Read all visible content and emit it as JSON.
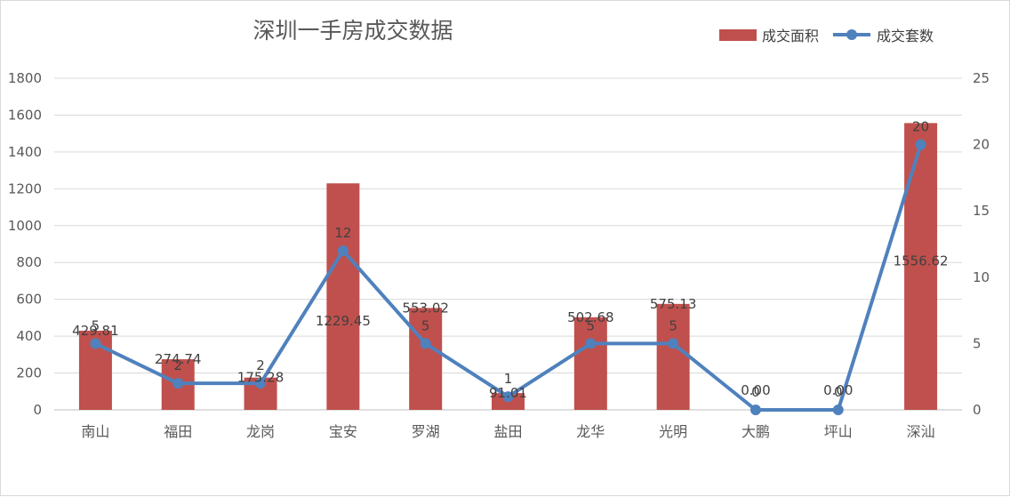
{
  "chart_data": {
    "type": "bar",
    "title": "深圳一手房成交数据",
    "categories": [
      "南山",
      "福田",
      "龙岗",
      "宝安",
      "罗湖",
      "盐田",
      "龙华",
      "光明",
      "大鹏",
      "坪山",
      "深汕"
    ],
    "series": [
      {
        "name": "成交面积",
        "type": "bar",
        "axis": "left",
        "color": "#c0504d",
        "values": [
          429.81,
          274.74,
          175.28,
          1229.45,
          553.02,
          91.01,
          502.68,
          575.13,
          0.0,
          0.0,
          1556.62
        ],
        "labels": [
          "429.81",
          "274.74",
          "175.28",
          "1229.45",
          "553.02",
          "91.01",
          "502.68",
          "575.13",
          "0.00",
          "0.00",
          "1556.62"
        ]
      },
      {
        "name": "成交套数",
        "type": "line",
        "axis": "right",
        "color": "#4f81bd",
        "values": [
          5,
          2,
          2,
          12,
          5,
          1,
          5,
          5,
          0,
          0,
          20
        ],
        "labels": [
          "5",
          "2",
          "2",
          "12",
          "5",
          "1",
          "5",
          "5",
          "0",
          "0",
          "20"
        ]
      }
    ],
    "y_left": {
      "min": 0,
      "max": 1800,
      "ticks": [
        "0",
        "200",
        "400",
        "600",
        "800",
        "1000",
        "1200",
        "1400",
        "1600",
        "1800"
      ]
    },
    "y_right": {
      "min": 0,
      "max": 25,
      "ticks": [
        "0",
        "5",
        "10",
        "15",
        "20",
        "25"
      ]
    },
    "grid": true,
    "legend_position": "top-right"
  }
}
